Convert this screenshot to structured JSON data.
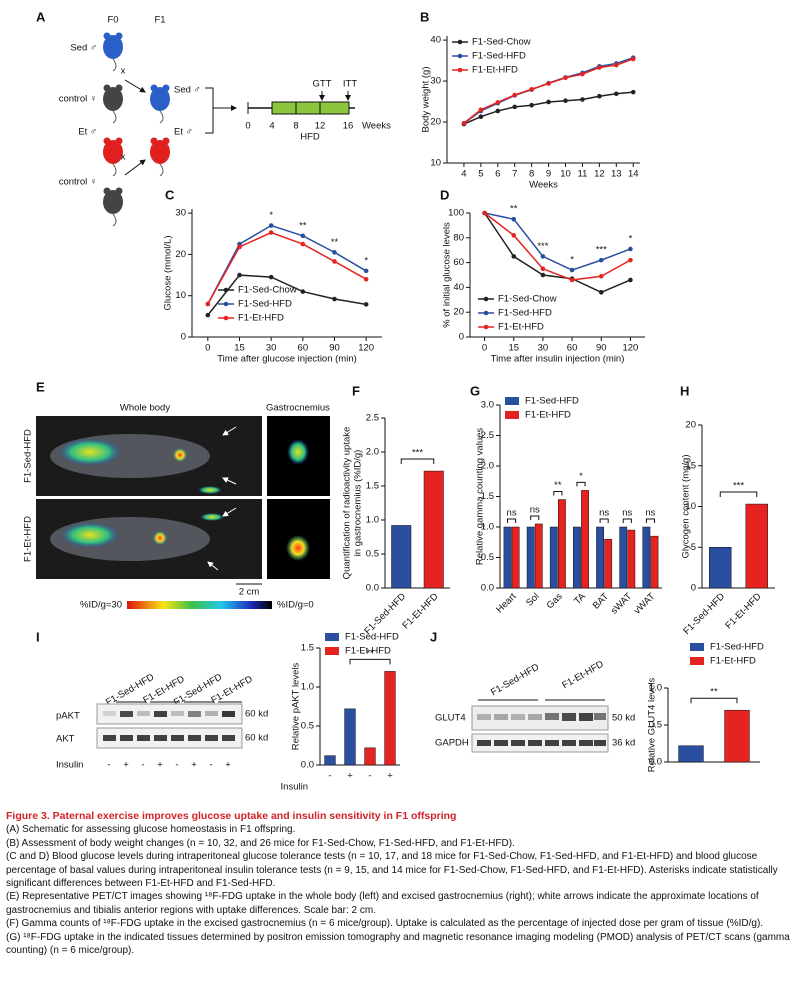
{
  "panels": [
    "A",
    "B",
    "C",
    "D",
    "E",
    "F",
    "G",
    "H",
    "I",
    "J"
  ],
  "schematic": {
    "generations": [
      "F0",
      "F1"
    ],
    "labels": [
      "Sed ♂",
      "control ♀",
      "Sed ♂",
      "Et ♂",
      "control ♀",
      "Et ♂"
    ],
    "cross": [
      "x",
      "x"
    ],
    "timeline": {
      "ticks": [
        "0",
        "4",
        "8",
        "12",
        "16"
      ],
      "unit": "Weeks",
      "diet": "HFD",
      "tests": [
        "GTT",
        "ITT"
      ]
    }
  },
  "pet_ct": {
    "headers": [
      "Whole body",
      "Gastrocnemius"
    ],
    "rows": [
      "F1-Sed-HFD",
      "F1-Et-HFD"
    ],
    "scale_bar": "2 cm",
    "colorbar": [
      "%ID/g=30",
      "%ID/g=0"
    ]
  },
  "blot_I": {
    "lanes": [
      "F1-Sed-HFD",
      "F1-Et-HFD",
      "F1-Sed-HFD",
      "F1-Et-HFD"
    ],
    "rows": [
      "pAKT",
      "AKT"
    ],
    "sizes": [
      "60 kd",
      "60 kd"
    ],
    "treatment": "Insulin",
    "signs": [
      "-",
      "+",
      "-",
      "+",
      "-",
      "+",
      "-",
      "+"
    ]
  },
  "blot_J": {
    "lanes": [
      "F1-Sed-HFD",
      "F1-Et-HFD"
    ],
    "rows": [
      "GLUT4",
      "GAPDH"
    ],
    "sizes": [
      "50 kd",
      "36 kd"
    ]
  },
  "chart_data": [
    {
      "type": "line",
      "x": [
        4,
        5,
        6,
        7,
        8,
        9,
        10,
        11,
        12,
        13,
        14
      ],
      "xlim": [
        3,
        14.4
      ],
      "xticks": [
        4,
        5,
        6,
        7,
        8,
        9,
        10,
        11,
        12,
        13,
        14
      ],
      "ylim": [
        10,
        41
      ],
      "yticks": [
        10,
        20,
        30,
        40
      ],
      "xlabel": "Weeks",
      "ylabel": "Body weight (g)",
      "legend": "top-left",
      "series": [
        {
          "name": "F1-Sed-Chow",
          "color": "#222222",
          "values": [
            19.5,
            21.3,
            22.7,
            23.7,
            24.1,
            24.9,
            25.2,
            25.5,
            26.3,
            26.9,
            27.3
          ]
        },
        {
          "name": "F1-Sed-HFD",
          "color": "#2b4fa0",
          "values": [
            19.7,
            22.7,
            24.6,
            26.5,
            27.9,
            29.5,
            30.9,
            32.0,
            33.6,
            34.3,
            35.7
          ]
        },
        {
          "name": "F1-Et-HFD",
          "color": "#e52421",
          "values": [
            19.7,
            23.0,
            24.8,
            26.6,
            28.0,
            29.4,
            30.8,
            31.7,
            33.3,
            33.9,
            35.4
          ]
        }
      ]
    },
    {
      "type": "line",
      "categories": [
        "0",
        "15",
        "30",
        "60",
        "90",
        "120"
      ],
      "ylim": [
        0,
        31
      ],
      "yticks": [
        0,
        10,
        20,
        30
      ],
      "xlabel": "Time after glucose injection (min)",
      "ylabel": "Glucose (mmol/L)",
      "legend": "bottom-right",
      "significance": [
        null,
        null,
        "*",
        "**",
        "**",
        "*"
      ],
      "series": [
        {
          "name": "F1-Sed-Chow",
          "color": "#222222",
          "values": [
            5.3,
            15.0,
            14.5,
            11.0,
            9.2,
            7.9
          ]
        },
        {
          "name": "F1-Sed-HFD",
          "color": "#2b4fa0",
          "values": [
            8.0,
            22.5,
            27.0,
            24.5,
            20.5,
            16.0
          ]
        },
        {
          "name": "F1-Et-HFD",
          "color": "#e52421",
          "values": [
            8.0,
            21.8,
            25.3,
            22.5,
            18.3,
            14.0
          ]
        }
      ]
    },
    {
      "type": "line",
      "categories": [
        "0",
        "15",
        "30",
        "60",
        "90",
        "120"
      ],
      "ylim": [
        0,
        100
      ],
      "yticks": [
        0,
        20,
        40,
        60,
        80,
        100
      ],
      "xlabel": "Time after insulin injection (min)",
      "ylabel": "% of initial glucose levels",
      "legend": "bottom-left",
      "significance": [
        null,
        "**",
        "***",
        "*",
        "***",
        "*"
      ],
      "series": [
        {
          "name": "F1-Sed-Chow",
          "color": "#222222",
          "values": [
            100,
            65,
            50,
            47,
            36,
            46
          ]
        },
        {
          "name": "F1-Sed-HFD",
          "color": "#2b4fa0",
          "values": [
            100,
            95,
            65,
            54,
            62,
            71
          ]
        },
        {
          "name": "F1-Et-HFD",
          "color": "#e52421",
          "values": [
            100,
            82,
            55,
            46,
            49,
            62
          ]
        }
      ]
    },
    {
      "type": "bar",
      "categories": [
        "F1-Sed-HFD",
        "F1-Et-HFD"
      ],
      "values": [
        0.92,
        1.72
      ],
      "colors": [
        "#2b4fa0",
        "#e52421"
      ],
      "ylim": [
        0,
        2.5
      ],
      "yticks": [
        {
          "value": 0,
          "label": "0.0"
        },
        {
          "value": 0.5,
          "label": "0.5"
        },
        {
          "value": 1,
          "label": "1.0"
        },
        {
          "value": 1.5,
          "label": "1.5"
        },
        {
          "value": 2,
          "label": "2.0"
        },
        {
          "value": 2.5,
          "label": "2.5"
        }
      ],
      "ylabel": [
        "Quantification of radioactivity uptake",
        "in gastrocnemius (%ID/g)"
      ],
      "significance": "***"
    },
    {
      "type": "bar",
      "categories": [
        "Heart",
        "Sol",
        "Gas",
        "TA",
        "BAT",
        "sWAT",
        "vWAT"
      ],
      "legend": "top-left",
      "ylim": [
        0,
        3
      ],
      "yticks": [
        {
          "value": 0,
          "label": "0.0"
        },
        {
          "value": 0.5,
          "label": "0.5"
        },
        {
          "value": 1,
          "label": "1.0"
        },
        {
          "value": 1.5,
          "label": "1.5"
        },
        {
          "value": 2,
          "label": "2.0"
        },
        {
          "value": 2.5,
          "label": "2.5"
        },
        {
          "value": 3,
          "label": "3.0"
        }
      ],
      "ylabel": "Relative gamma counting values",
      "significance": [
        "ns",
        "ns",
        "**",
        "*",
        "ns",
        "ns",
        "ns"
      ],
      "series": [
        {
          "name": "F1-Sed-HFD",
          "color": "#2b4fa0",
          "values": [
            1.0,
            1.0,
            1.0,
            1.0,
            1.0,
            1.0,
            1.0
          ]
        },
        {
          "name": "F1-Et-HFD",
          "color": "#e52421",
          "values": [
            1.0,
            1.05,
            1.45,
            1.6,
            0.8,
            0.95,
            0.85
          ]
        }
      ]
    },
    {
      "type": "bar",
      "categories": [
        "F1-Sed-HFD",
        "F1-Et-HFD"
      ],
      "values": [
        5.0,
        10.3
      ],
      "colors": [
        "#2b4fa0",
        "#e52421"
      ],
      "ylim": [
        0,
        20
      ],
      "yticks": [
        0,
        5,
        10,
        15,
        20
      ],
      "ylabel": "Glycogen content (mg/g)",
      "significance": "***"
    },
    {
      "type": "bar",
      "categories": [
        "-",
        "+",
        "-",
        "+"
      ],
      "xlabel": "Insulin",
      "legend": "top-left",
      "ylim": [
        0,
        1.5
      ],
      "yticks": [
        {
          "value": 0,
          "label": "0.0"
        },
        {
          "value": 0.5,
          "label": "0.5"
        },
        {
          "value": 1,
          "label": "1.0"
        },
        {
          "value": 1.5,
          "label": "1.5"
        }
      ],
      "ylabel": "Relative pAKT levels",
      "significance": "**",
      "series": [
        {
          "name": "F1-Sed-HFD",
          "color": "#2b4fa0",
          "values": [
            0.12,
            0.72,
            null,
            null
          ]
        },
        {
          "name": "F1-Et-HFD",
          "color": "#e52421",
          "values": [
            null,
            null,
            0.22,
            1.2
          ]
        }
      ]
    },
    {
      "type": "bar",
      "categories": [
        null,
        null
      ],
      "legend": "top-right",
      "ylim": [
        0,
        1
      ],
      "yticks": [
        {
          "value": 0,
          "label": "0.0"
        },
        {
          "value": 0.5,
          "label": "0.5"
        },
        {
          "value": 1,
          "label": "1.0"
        }
      ],
      "ylabel": "Relative GLUT4 levels",
      "significance": "**",
      "series": [
        {
          "name": "F1-Sed-HFD",
          "color": "#2b4fa0",
          "values": [
            0.22,
            null
          ]
        },
        {
          "name": "F1-Et-HFD",
          "color": "#e52421",
          "values": [
            null,
            0.7
          ]
        }
      ]
    }
  ],
  "caption": {
    "title": "Figure 3. Paternal exercise improves glucose uptake and insulin sensitivity in F1 offspring",
    "paragraphs": [
      "(A) Schematic for assessing glucose homeostasis in F1 offspring.",
      "(B) Assessment of body weight changes (n = 10, 32, and 26 mice for F1-Sed-Chow, F1-Sed-HFD, and F1-Et-HFD).",
      "(C and D) Blood glucose levels during intraperitoneal glucose tolerance tests (n = 10, 17, and 18 mice for F1-Sed-Chow, F1-Sed-HFD, and F1-Et-HFD) and blood glucose percentage of basal values during intraperitoneal insulin tolerance tests (n = 9, 15, and 14 mice for F1-Sed-Chow, F1-Sed-HFD, and F1-Et-HFD). Asterisks indicate statistically significant differences between F1-Et-HFD and F1-Sed-HFD.",
      "(E) Representative PET/CT images showing ¹⁸F-FDG uptake in the whole body (left) and excised gastrocnemius (right); white arrows indicate the approximate locations of gastrocnemius and tibialis anterior regions with uptake differences. Scale bar: 2 cm.",
      "(F) Gamma counts of ¹⁸F-FDG uptake in the excised gastrocnemius (n = 6 mice/group). Uptake is calculated as the percentage of injected dose per gram of tissue (%ID/g).",
      "(G) ¹⁸F-FDG uptake in the indicated tissues determined by positron emission tomography and magnetic resonance imaging modeling (PMOD) analysis of PET/CT scans (gamma counting) (n = 6 mice/group)."
    ]
  }
}
